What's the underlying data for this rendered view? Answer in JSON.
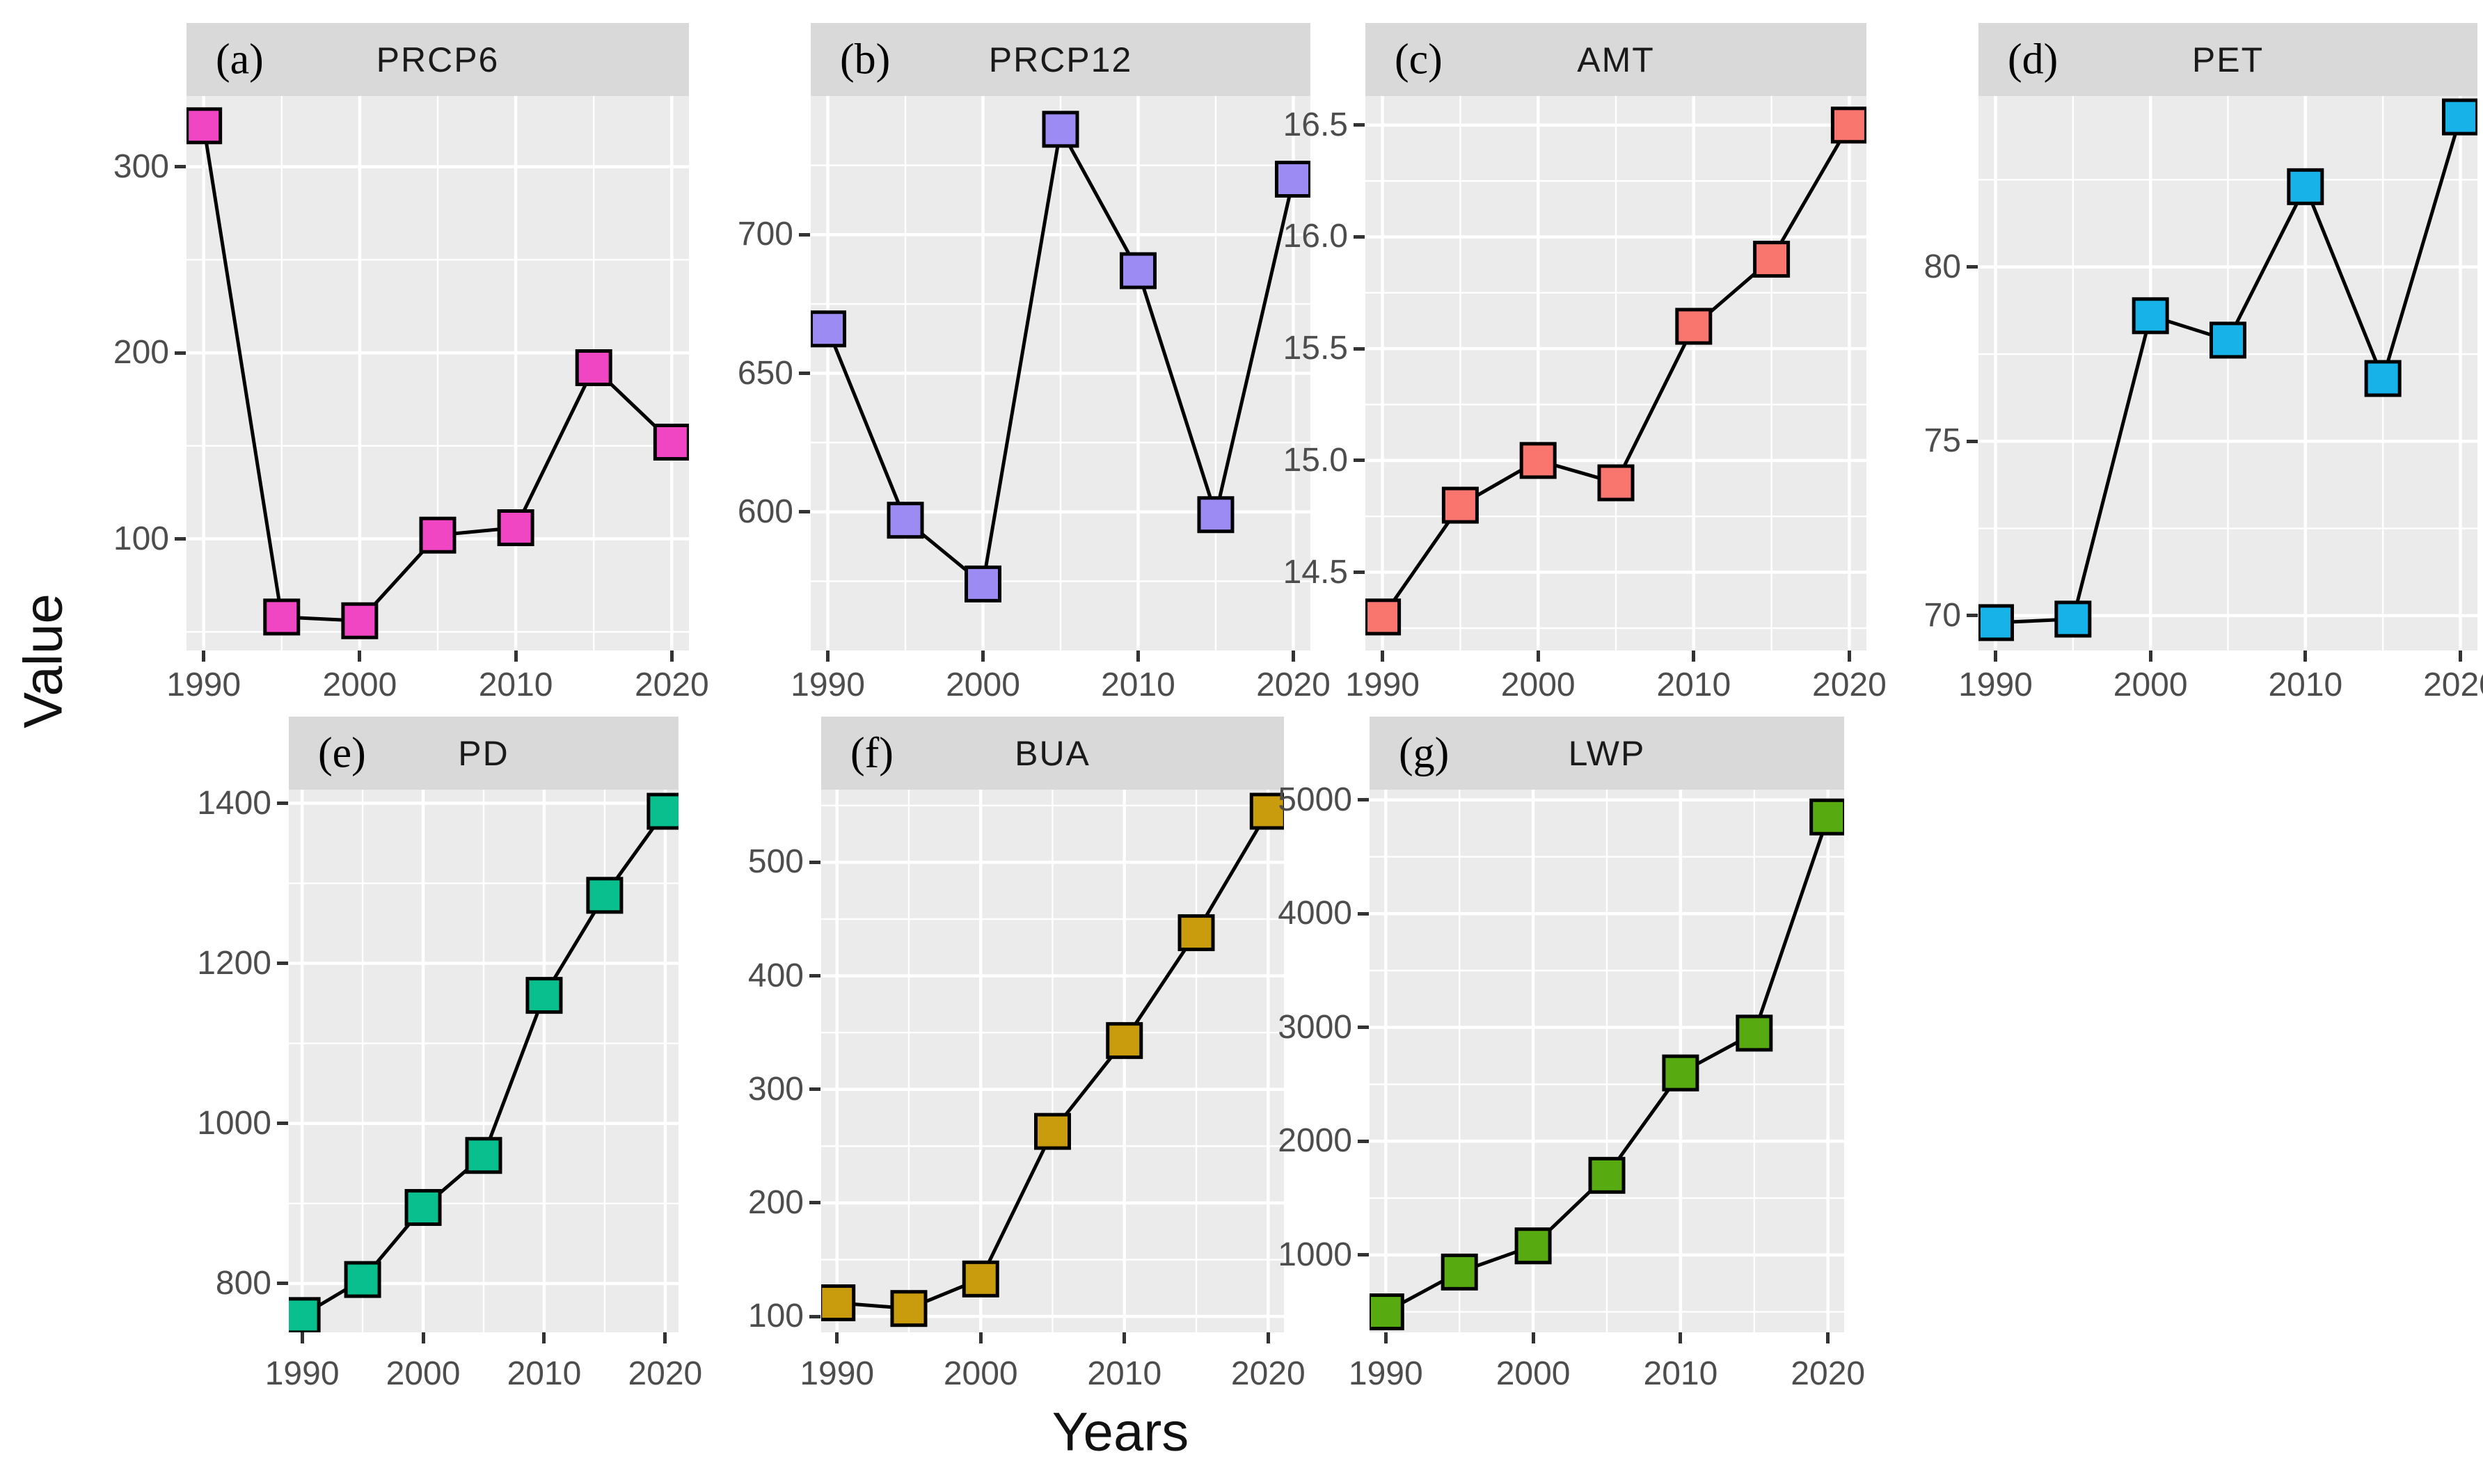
{
  "figure": {
    "ylabel": "Value",
    "xlabel": "Years"
  },
  "style": {
    "panel_background": "#ebebeb",
    "strip_background": "#d9d9d9",
    "gridline_color": "#ffffff",
    "line_color": "#000000",
    "tick_text_color": "#4d4d4d"
  },
  "chart_data": {
    "type": "line",
    "x": [
      1990,
      1995,
      2000,
      2005,
      2010,
      2015,
      2020
    ],
    "xticks": [
      1990,
      2000,
      2010,
      2020
    ],
    "xlim": [
      1988.9,
      2021.1
    ],
    "marker": "filled-square",
    "legend": "none",
    "grid": "on",
    "panels": [
      {
        "id": "a",
        "tag": "(a)",
        "title": "PRCP6",
        "color": "#f046c3",
        "values": [
          322,
          58,
          56,
          102,
          106,
          192,
          152
        ],
        "yticks": [
          100,
          200,
          300
        ],
        "ylim": [
          40,
          338
        ],
        "ydecimals": 0
      },
      {
        "id": "b",
        "tag": "(b)",
        "title": "PRCP12",
        "color": "#9c8bf2",
        "values": [
          666,
          597,
          574,
          738,
          687,
          599,
          720
        ],
        "yticks": [
          600,
          650,
          700
        ],
        "ylim": [
          550,
          750
        ],
        "ydecimals": 0
      },
      {
        "id": "c",
        "tag": "(c)",
        "title": "AMT",
        "color": "#f8766d",
        "values": [
          14.3,
          14.8,
          15.0,
          14.9,
          15.6,
          15.9,
          16.5
        ],
        "yticks": [
          14.5,
          15.0,
          15.5,
          16.0,
          16.5
        ],
        "ylim": [
          14.15,
          16.63
        ],
        "ydecimals": 1
      },
      {
        "id": "d",
        "tag": "(d)",
        "title": "PET",
        "color": "#16b2e8",
        "values": [
          69.8,
          69.9,
          78.6,
          77.9,
          82.3,
          76.8,
          84.3
        ],
        "yticks": [
          70,
          75,
          80
        ],
        "ylim": [
          69.0,
          84.9
        ],
        "ydecimals": 0
      },
      {
        "id": "e",
        "tag": "(e)",
        "title": "PD",
        "color": "#0abf8e",
        "values": [
          760,
          805,
          895,
          960,
          1160,
          1285,
          1390
        ],
        "yticks": [
          800,
          1000,
          1200,
          1400
        ],
        "ylim": [
          739,
          1417
        ],
        "ydecimals": 0
      },
      {
        "id": "f",
        "tag": "(f)",
        "title": "BUA",
        "color": "#c99c0e",
        "values": [
          112,
          107,
          133,
          263,
          343,
          438,
          545
        ],
        "yticks": [
          100,
          200,
          300,
          400,
          500
        ],
        "ylim": [
          86,
          564
        ],
        "ydecimals": 0
      },
      {
        "id": "g",
        "tag": "(g)",
        "title": "LWP",
        "color": "#57ab11",
        "values": [
          500,
          850,
          1080,
          1700,
          2600,
          2950,
          4850
        ],
        "yticks": [
          1000,
          2000,
          3000,
          4000,
          5000
        ],
        "ylim": [
          320,
          5090
        ],
        "ydecimals": 0
      }
    ]
  }
}
